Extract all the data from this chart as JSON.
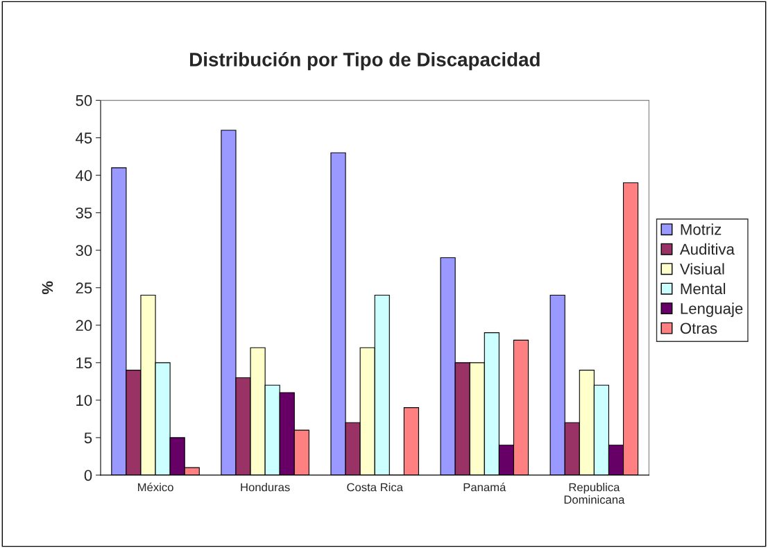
{
  "chart_data": {
    "type": "bar",
    "title": "Distribución por Tipo de Discapacidad",
    "ylabel": "%",
    "categories": [
      "México",
      "Honduras",
      "Costa Rica",
      "Panamá",
      "Republica\nDominicana"
    ],
    "series": [
      {
        "name": "Motriz",
        "color": "#9999ff",
        "values": [
          41,
          46,
          43,
          29,
          24
        ]
      },
      {
        "name": "Auditiva",
        "color": "#993366",
        "values": [
          14,
          13,
          7,
          15,
          7
        ]
      },
      {
        "name": "Visiual",
        "color": "#ffffcc",
        "values": [
          24,
          17,
          17,
          15,
          14
        ]
      },
      {
        "name": "Mental",
        "color": "#ccffff",
        "values": [
          15,
          12,
          24,
          19,
          12
        ]
      },
      {
        "name": "Lenguaje",
        "color": "#660066",
        "values": [
          5,
          11,
          0,
          4,
          4
        ]
      },
      {
        "name": "Otras",
        "color": "#ff8080",
        "values": [
          1,
          6,
          9,
          18,
          39
        ]
      }
    ],
    "ylim": [
      0,
      50
    ],
    "yticks": [
      0,
      5,
      10,
      15,
      20,
      25,
      30,
      35,
      40,
      45,
      50
    ],
    "grid": false,
    "legend": "right"
  }
}
